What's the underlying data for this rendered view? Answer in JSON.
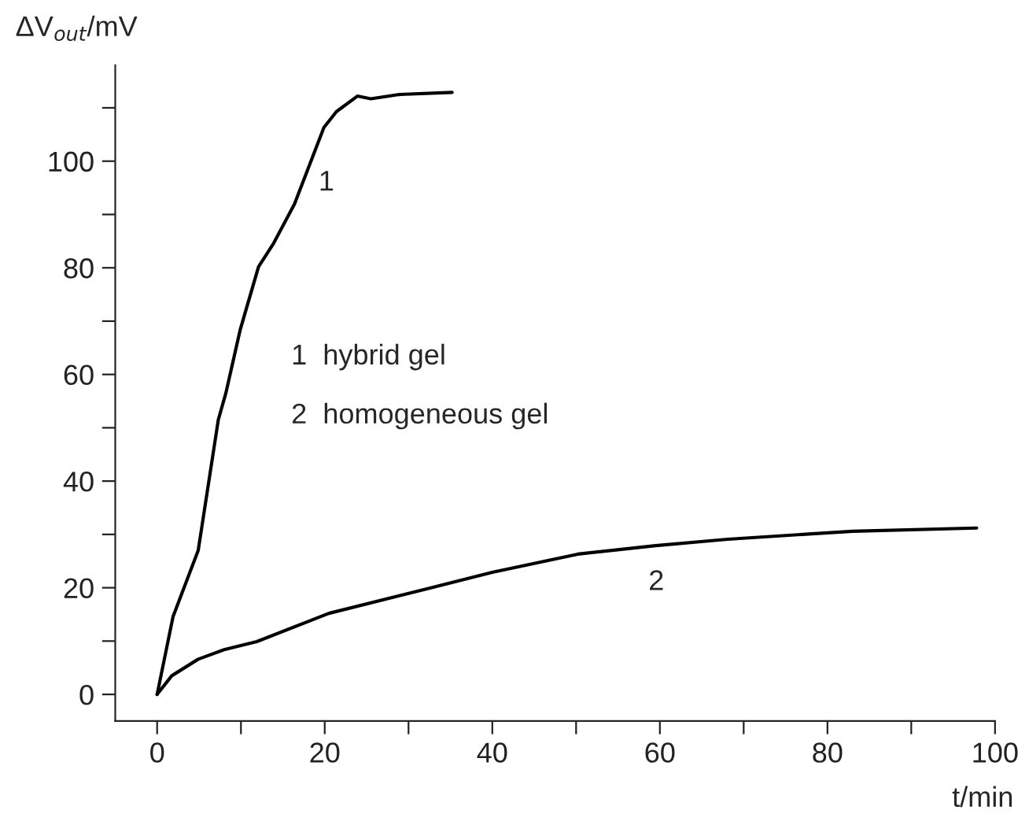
{
  "chart_data": {
    "type": "line",
    "xlabel": "t/min",
    "ylabel": "ΔV$_{out}$/mV",
    "xlim": [
      -5,
      100
    ],
    "ylim": [
      -5,
      118
    ],
    "xticks": [
      0,
      {
        "value": 10,
        "label": null
      },
      20,
      {
        "value": 30,
        "label": null
      },
      40,
      {
        "value": 50,
        "label": null
      },
      60,
      {
        "value": 70,
        "label": null
      },
      80,
      {
        "value": 90,
        "label": null
      },
      100
    ],
    "yticks": [
      0,
      {
        "value": 10,
        "label": null
      },
      20,
      {
        "value": 30,
        "label": null
      },
      40,
      {
        "value": 50,
        "label": null
      },
      60,
      {
        "value": 70,
        "label": null
      },
      80,
      {
        "value": 90,
        "label": null
      },
      100,
      {
        "value": 110,
        "label": null
      }
    ],
    "grid": false,
    "legend": false,
    "marker": "none",
    "line_style": "solid",
    "series": [
      {
        "color": "#000000",
        "x": [
          0,
          1.9,
          4.9,
          7.3,
          8.2,
          9.9,
          12.1,
          13.9,
          16.4,
          19.9,
          21.4,
          23.9,
          25.5,
          28.9,
          35.2
        ],
        "values": [
          0,
          14.6,
          27,
          51.5,
          56.5,
          68.3,
          80.2,
          84.6,
          92,
          106.3,
          109.3,
          112.2,
          111.7,
          112.5,
          112.9
        ]
      },
      {
        "color": "#000000",
        "x": [
          0,
          1.75,
          4.9,
          8,
          11.9,
          20.5,
          32.2,
          40,
          50.2,
          59.5,
          68.1,
          83,
          97.8
        ],
        "values": [
          0,
          3.5,
          6.6,
          8.4,
          9.9,
          15.2,
          19.8,
          22.9,
          26.3,
          27.9,
          29.1,
          30.6,
          31.2
        ]
      }
    ],
    "annotations": [
      "1",
      "2",
      "1  hybrid gel",
      "2  homogeneous gel"
    ]
  }
}
